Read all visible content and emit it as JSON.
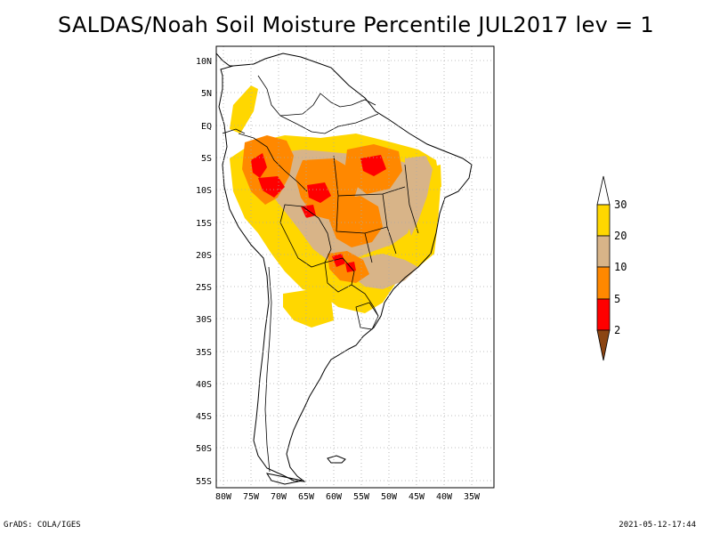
{
  "title": "SALDAS/Noah Soil Moisture Percentile JUL2017 lev = 1",
  "map": {
    "lon_ticks": [
      "80W",
      "75W",
      "70W",
      "65W",
      "60W",
      "55W",
      "50W",
      "45W",
      "40W",
      "35W"
    ],
    "lat_ticks": [
      "10N",
      "5N",
      "EQ",
      "5S",
      "10S",
      "15S",
      "20S",
      "25S",
      "30S",
      "35S",
      "40S",
      "45S",
      "50S",
      "55S"
    ],
    "grid": true
  },
  "legend": {
    "labels": [
      "30",
      "20",
      "10",
      "5",
      "2"
    ],
    "colors": {
      "above_30": "#ffffff",
      "20_30": "#ffd700",
      "10_20": "#d8b488",
      "5_10": "#ff8800",
      "2_5": "#ff0000",
      "below_2": "#8b4513"
    }
  },
  "footer": {
    "left": "GrADS: COLA/IGES",
    "right": "2021-05-12-17:44"
  }
}
